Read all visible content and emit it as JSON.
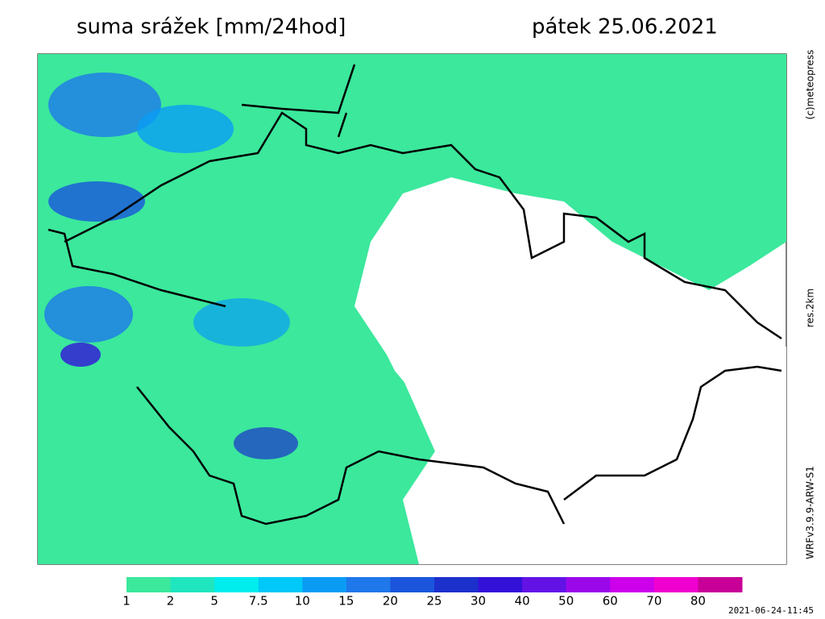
{
  "header": {
    "title": "suma srážek [mm/24hod]",
    "date": "pátek 25.06.2021"
  },
  "side_labels": {
    "copyright": "(c)meteopress",
    "resolution": "res.2km",
    "model": "WRFv3.9.9-ARW-S1"
  },
  "colorbar": {
    "levels": [
      1,
      2,
      5,
      7.5,
      10,
      15,
      20,
      25,
      30,
      40,
      50,
      60,
      70,
      80
    ],
    "colors": [
      "#3be89c",
      "#1fe6bf",
      "#00eded",
      "#00c8f8",
      "#0a9cf5",
      "#1f78ea",
      "#1a55dc",
      "#1c30cc",
      "#3311d8",
      "#6312e6",
      "#9a08ea",
      "#cc00ea",
      "#f000d0",
      "#c80098"
    ]
  },
  "timestamp": "2021-06-24-11:45"
}
